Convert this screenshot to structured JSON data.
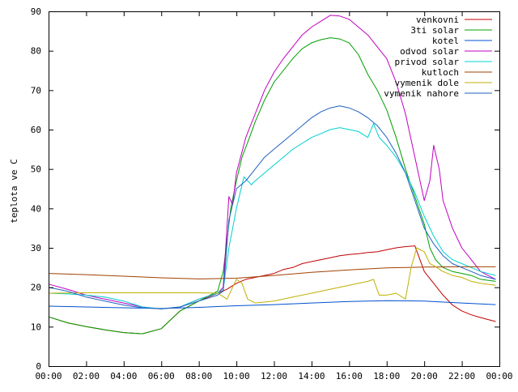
{
  "chart_data": {
    "type": "line",
    "title": "",
    "xlabel": "",
    "ylabel": "teplota ve C",
    "xlim": [
      0,
      24
    ],
    "ylim": [
      0,
      90
    ],
    "x_ticks": [
      {
        "x": 0,
        "label": "00:00"
      },
      {
        "x": 2,
        "label": "02:00"
      },
      {
        "x": 4,
        "label": "04:00"
      },
      {
        "x": 6,
        "label": "06:00"
      },
      {
        "x": 8,
        "label": "08:00"
      },
      {
        "x": 10,
        "label": "10:00"
      },
      {
        "x": 12,
        "label": "12:00"
      },
      {
        "x": 14,
        "label": "14:00"
      },
      {
        "x": 16,
        "label": "16:00"
      },
      {
        "x": 18,
        "label": "18:00"
      },
      {
        "x": 20,
        "label": "20:00"
      },
      {
        "x": 22,
        "label": "22:00"
      },
      {
        "x": 24,
        "label": "00:00"
      }
    ],
    "y_ticks": [
      {
        "y": 0,
        "label": "0"
      },
      {
        "y": 10,
        "label": "10"
      },
      {
        "y": 20,
        "label": "20"
      },
      {
        "y": 30,
        "label": "30"
      },
      {
        "y": 40,
        "label": "40"
      },
      {
        "y": 50,
        "label": "50"
      },
      {
        "y": 60,
        "label": "60"
      },
      {
        "y": 70,
        "label": "70"
      },
      {
        "y": 80,
        "label": "80"
      },
      {
        "y": 90,
        "label": "90"
      }
    ],
    "grid": false,
    "legend_position": "top-right",
    "series": [
      {
        "name": "venkovni",
        "color": "#c00000",
        "x": [
          0,
          1,
          2,
          3,
          4,
          5,
          6,
          7,
          8,
          9,
          9.5,
          10,
          10.5,
          11,
          11.5,
          12,
          12.5,
          13,
          13.5,
          14,
          14.5,
          15,
          15.5,
          16,
          16.5,
          17,
          17.5,
          18,
          18.5,
          19,
          19.5,
          20,
          20.5,
          21,
          21.5,
          22,
          22.5,
          23,
          23.8
        ],
        "y": [
          12.5,
          11,
          10,
          9.2,
          8.5,
          8.2,
          9.5,
          14,
          16.5,
          18.5,
          19.5,
          21,
          22,
          22.5,
          23,
          23.5,
          24.5,
          25,
          26,
          26.5,
          27,
          27.5,
          28,
          28.3,
          28.5,
          28.8,
          29,
          29.5,
          30,
          30.3,
          30.5,
          24,
          21,
          18,
          15.5,
          14,
          13,
          12.3,
          11.3
        ]
      },
      {
        "name": "3ti solar",
        "color": "#00a000",
        "x": [
          0,
          1,
          2,
          3,
          4,
          5,
          6,
          7,
          8,
          9,
          9.3,
          9.5,
          9.7,
          10,
          10.3,
          10.7,
          11,
          11.5,
          12,
          12.5,
          13,
          13.5,
          14,
          14.5,
          15,
          15.5,
          16,
          16.5,
          17,
          17.5,
          18,
          18.5,
          19,
          19.5,
          20,
          20.3,
          20.6,
          21,
          21.5,
          22,
          22.5,
          23,
          23.8
        ],
        "y": [
          12.5,
          11,
          10,
          9.2,
          8.5,
          8.2,
          9.5,
          14,
          16.5,
          19,
          24,
          32,
          40,
          47,
          53,
          58,
          62,
          67.5,
          72,
          75,
          78,
          80.5,
          82,
          82.8,
          83.3,
          83,
          82,
          79,
          74,
          70,
          65,
          58,
          50,
          43,
          36,
          30,
          27,
          25,
          24,
          23.5,
          23,
          22,
          21.5
        ]
      },
      {
        "name": "kotel",
        "color": "#0050d0",
        "x": [
          0,
          2,
          4,
          6,
          8,
          10,
          12,
          14,
          16,
          18,
          20,
          22,
          23.8
        ],
        "y": [
          15.2,
          15,
          14.8,
          14.6,
          14.9,
          15.3,
          15.6,
          16,
          16.4,
          16.6,
          16.5,
          16,
          15.6
        ]
      },
      {
        "name": "odvod solar",
        "color": "#c000c0",
        "x": [
          0,
          1,
          2,
          3,
          4,
          5,
          6,
          7,
          8,
          9,
          9.3,
          9.6,
          9.8,
          10,
          10.5,
          11,
          11.5,
          12,
          12.5,
          13,
          13.5,
          14,
          14.5,
          15,
          15.5,
          16,
          16.5,
          17,
          17.5,
          18,
          18.5,
          19,
          19.5,
          20,
          20.3,
          20.5,
          20.8,
          21,
          21.5,
          22,
          22.5,
          23,
          23.8
        ],
        "y": [
          20.8,
          19.5,
          18,
          17,
          16,
          15,
          14.5,
          15,
          17,
          18.5,
          20,
          43,
          41,
          49,
          58,
          64,
          70,
          74.5,
          78,
          81,
          84,
          86,
          87.5,
          89,
          88.8,
          88,
          86,
          84,
          81,
          78,
          72,
          64,
          53,
          42,
          47,
          56,
          50,
          42,
          35,
          30,
          27,
          24,
          22
        ]
      },
      {
        "name": "privod solar",
        "color": "#00d0d0",
        "x": [
          0,
          1,
          2,
          3,
          4,
          5,
          6,
          7,
          8,
          9,
          9.3,
          9.6,
          10,
          10.4,
          10.8,
          11,
          11.5,
          12,
          12.5,
          13,
          13.5,
          14,
          14.5,
          15,
          15.5,
          16,
          16.5,
          17,
          17.3,
          17.6,
          18,
          18.5,
          19,
          19.5,
          20,
          20.5,
          21,
          21.5,
          22,
          22.5,
          23,
          23.8
        ],
        "y": [
          18.5,
          18.3,
          18,
          17.5,
          16.5,
          15,
          14.5,
          15,
          17,
          18.5,
          19.5,
          30,
          40,
          48,
          46,
          47,
          49,
          51,
          53,
          55,
          56.5,
          58,
          59,
          60,
          60.5,
          60,
          59.5,
          58,
          61.5,
          58,
          56,
          53,
          49,
          44,
          38,
          33,
          29,
          27,
          26,
          25,
          24,
          23
        ]
      },
      {
        "name": "kutloch",
        "color": "#a04000",
        "x": [
          0,
          2,
          4,
          6,
          8,
          10,
          12,
          14,
          16,
          18,
          20,
          22,
          23.8
        ],
        "y": [
          23.5,
          23.2,
          22.8,
          22.4,
          22.1,
          22.3,
          23,
          23.8,
          24.4,
          24.9,
          25.1,
          25.2,
          25.2
        ]
      },
      {
        "name": "vymenik dole",
        "color": "#c0b000",
        "x": [
          0,
          2,
          4,
          6,
          8,
          9,
          9.5,
          10,
          10.3,
          10.6,
          11,
          12,
          13,
          14,
          15,
          16,
          16.5,
          17,
          17.3,
          17.6,
          18,
          18.5,
          19,
          19.3,
          19.6,
          20,
          20.3,
          20.5,
          21,
          21.5,
          22,
          22.5,
          23,
          23.8
        ],
        "y": [
          18.5,
          18.6,
          18.6,
          18.6,
          18.6,
          18.5,
          17,
          22,
          21,
          17,
          16,
          16.5,
          17.5,
          18.5,
          19.5,
          20.5,
          21,
          21.5,
          22,
          18,
          18,
          18.5,
          17,
          25,
          30,
          29,
          26,
          25.5,
          24,
          23,
          22.5,
          21.5,
          21,
          20.5
        ]
      },
      {
        "name": "vymenik nahore",
        "color": "#2060c0",
        "x": [
          0,
          1,
          2,
          3,
          4,
          5,
          6,
          7,
          8,
          9,
          9.3,
          9.6,
          10,
          10.5,
          11,
          11.5,
          12,
          12.5,
          13,
          13.5,
          14,
          14.5,
          15,
          15.5,
          16,
          16.5,
          17,
          17.5,
          18,
          18.5,
          19,
          19.5,
          20,
          20.5,
          21,
          21.5,
          22,
          22.5,
          23,
          23.8
        ],
        "y": [
          20,
          19,
          17.5,
          16.5,
          15.5,
          14.8,
          14.5,
          15,
          16.5,
          18,
          19,
          37,
          45,
          47,
          50,
          53,
          55,
          57,
          59,
          61,
          63,
          64.5,
          65.5,
          66,
          65.5,
          64.5,
          63,
          61,
          58,
          54,
          49,
          42,
          35,
          31,
          28,
          26,
          25,
          24,
          23,
          22
        ]
      }
    ]
  }
}
